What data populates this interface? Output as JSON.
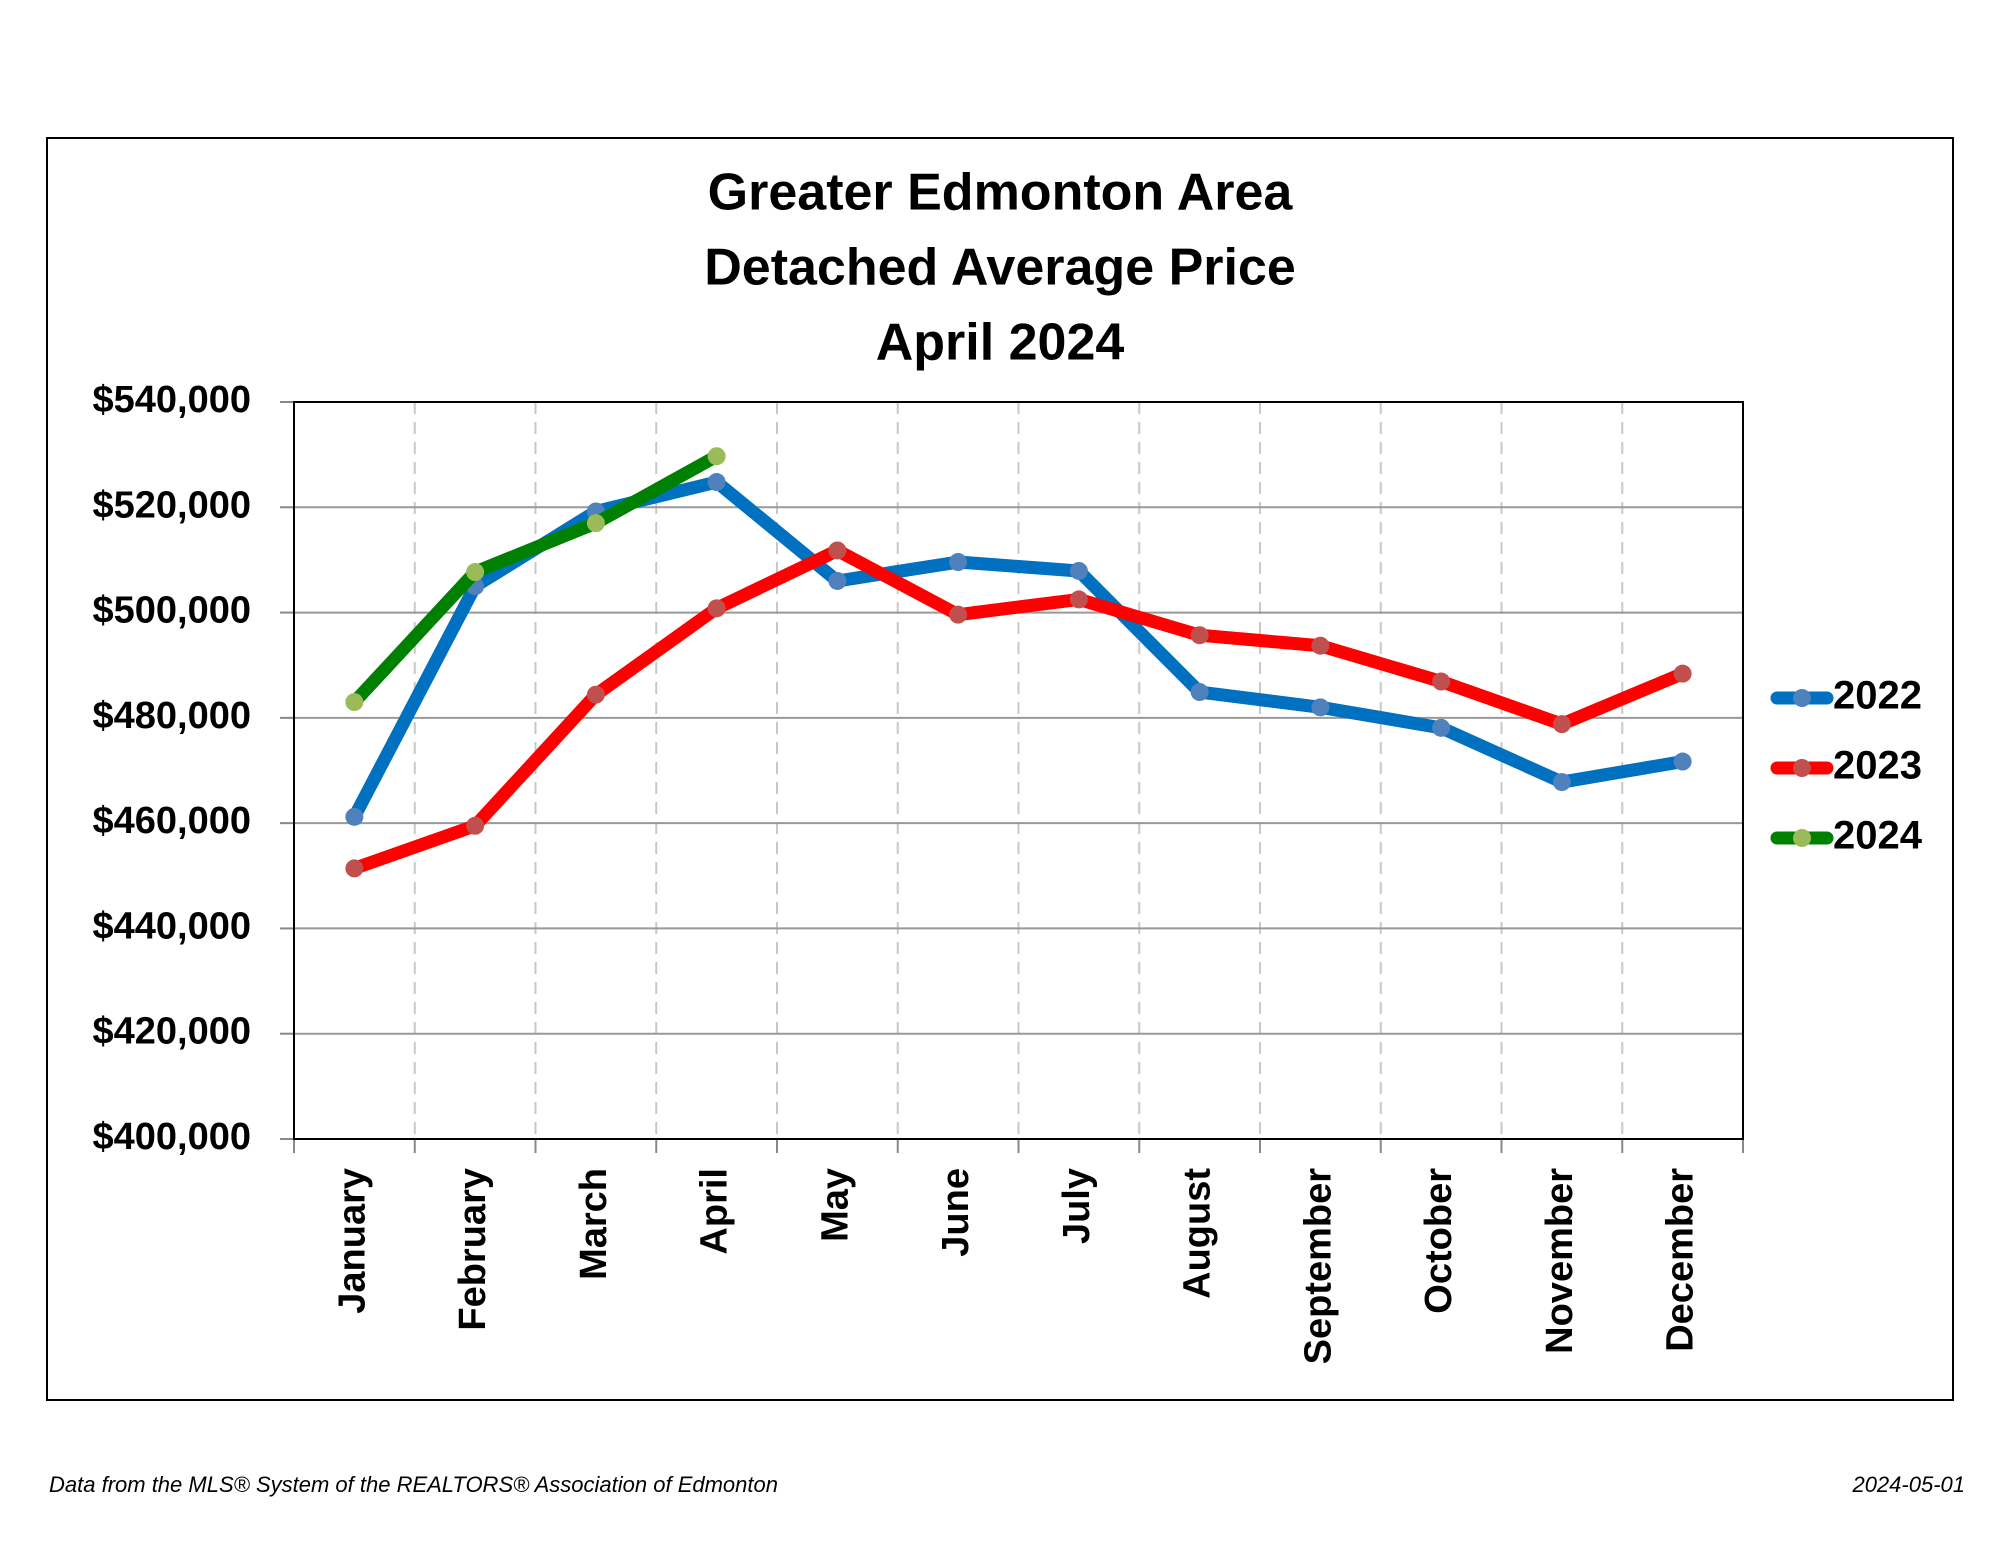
{
  "chart_data": {
    "type": "line",
    "title": [
      "Greater Edmonton Area",
      "Detached Average Price",
      "April 2024"
    ],
    "categories": [
      "January",
      "February",
      "March",
      "April",
      "May",
      "June",
      "July",
      "August",
      "September",
      "October",
      "November",
      "December"
    ],
    "series": [
      {
        "name": "2022",
        "color": "#0070c0",
        "marker_color": "#4f81bd",
        "values": [
          461200,
          505000,
          519200,
          524800,
          506000,
          509600,
          507900,
          484900,
          482000,
          478100,
          467800,
          471700
        ]
      },
      {
        "name": "2023",
        "color": "#ff0000",
        "marker_color": "#c0504d",
        "values": [
          451400,
          459500,
          484400,
          500800,
          511800,
          499600,
          502500,
          495700,
          493700,
          486900,
          478800,
          488400
        ]
      },
      {
        "name": "2024",
        "color": "#008000",
        "marker_color": "#9bbb59",
        "values": [
          483000,
          507700,
          517000,
          529700,
          null,
          null,
          null,
          null,
          null,
          null,
          null,
          null
        ]
      }
    ],
    "ylim": [
      400000,
      540000
    ],
    "yticks": [
      {
        "value": 400000,
        "label": "$400,000"
      },
      {
        "value": 420000,
        "label": "$420,000"
      },
      {
        "value": 440000,
        "label": "$440,000"
      },
      {
        "value": 460000,
        "label": "$460,000"
      },
      {
        "value": 480000,
        "label": "$480,000"
      },
      {
        "value": 500000,
        "label": "$500,000"
      },
      {
        "value": 520000,
        "label": "$520,000"
      },
      {
        "value": 540000,
        "label": "$540,000"
      }
    ],
    "grid": true,
    "legend": "right",
    "note": "Data from the MLS® System of the REALTORS® Association of Edmonton",
    "date": "2024-05-01"
  }
}
